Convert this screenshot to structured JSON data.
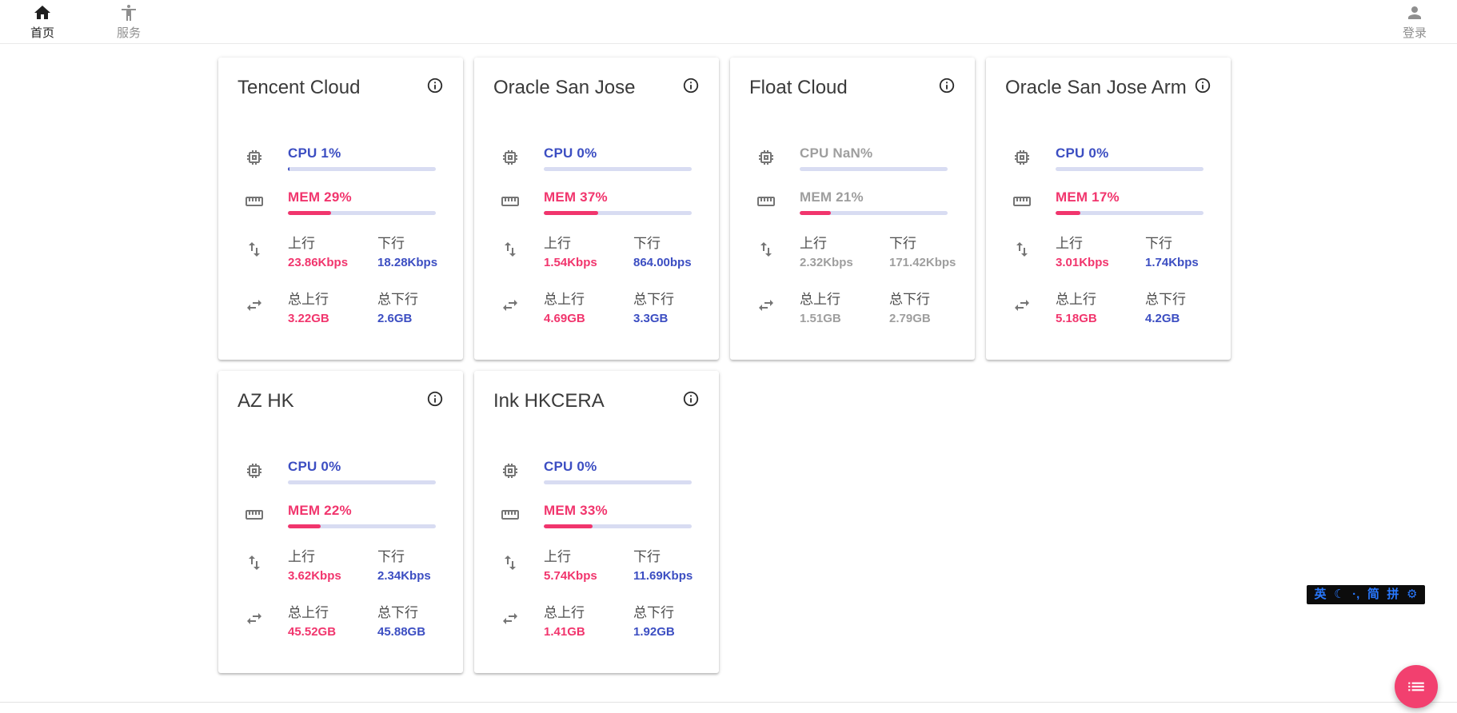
{
  "navbar": {
    "home": {
      "label": "首页"
    },
    "services": {
      "label": "服务"
    },
    "login": {
      "label": "登录"
    }
  },
  "field_labels": {
    "upload": "上行",
    "download": "下行",
    "total_upload": "总上行",
    "total_download": "总下行"
  },
  "servers": [
    {
      "name": "Tencent Cloud",
      "cpu_label": "CPU 1%",
      "cpu_pct": 1,
      "mem_label": "MEM 29%",
      "mem_pct": 29,
      "upload": "23.86Kbps",
      "download": "18.28Kbps",
      "total_upload": "3.22GB",
      "total_download": "2.6GB",
      "online": true
    },
    {
      "name": "Oracle San Jose",
      "cpu_label": "CPU 0%",
      "cpu_pct": 0,
      "mem_label": "MEM 37%",
      "mem_pct": 37,
      "upload": "1.54Kbps",
      "download": "864.00bps",
      "total_upload": "4.69GB",
      "total_download": "3.3GB",
      "online": true
    },
    {
      "name": "Float Cloud",
      "cpu_label": "CPU NaN%",
      "cpu_pct": 0,
      "mem_label": "MEM 21%",
      "mem_pct": 21,
      "upload": "2.32Kbps",
      "download": "171.42Kbps",
      "total_upload": "1.51GB",
      "total_download": "2.79GB",
      "online": false
    },
    {
      "name": "Oracle San Jose Arm",
      "cpu_label": "CPU 0%",
      "cpu_pct": 0,
      "mem_label": "MEM 17%",
      "mem_pct": 17,
      "upload": "3.01Kbps",
      "download": "1.74Kbps",
      "total_upload": "5.18GB",
      "total_download": "4.2GB",
      "online": true
    },
    {
      "name": "AZ HK",
      "cpu_label": "CPU 0%",
      "cpu_pct": 0,
      "mem_label": "MEM 22%",
      "mem_pct": 22,
      "upload": "3.62Kbps",
      "download": "2.34Kbps",
      "total_upload": "45.52GB",
      "total_download": "45.88GB",
      "online": true
    },
    {
      "name": "Ink HKCERA",
      "cpu_label": "CPU 0%",
      "cpu_pct": 0,
      "mem_label": "MEM 33%",
      "mem_pct": 33,
      "upload": "5.74Kbps",
      "download": "11.69Kbps",
      "total_upload": "1.41GB",
      "total_download": "1.92GB",
      "online": true
    }
  ],
  "ime_bar": {
    "items": [
      {
        "name": "lang-mode",
        "glyph": "英"
      },
      {
        "name": "moon-mode",
        "glyph": "☾"
      },
      {
        "name": "punct-mode",
        "glyph": "·,"
      },
      {
        "name": "simplified",
        "glyph": "简"
      },
      {
        "name": "pinyin",
        "glyph": "拼"
      },
      {
        "name": "settings",
        "glyph": "⚙"
      }
    ]
  },
  "colors": {
    "accent_blue": "#3c4ec2",
    "accent_pink": "#f1356d",
    "bar_track": "#d8dcf2",
    "offline_gray": "#9e9e9e",
    "fab_pink": "#f2406f",
    "ime_blue": "#2979ff"
  }
}
